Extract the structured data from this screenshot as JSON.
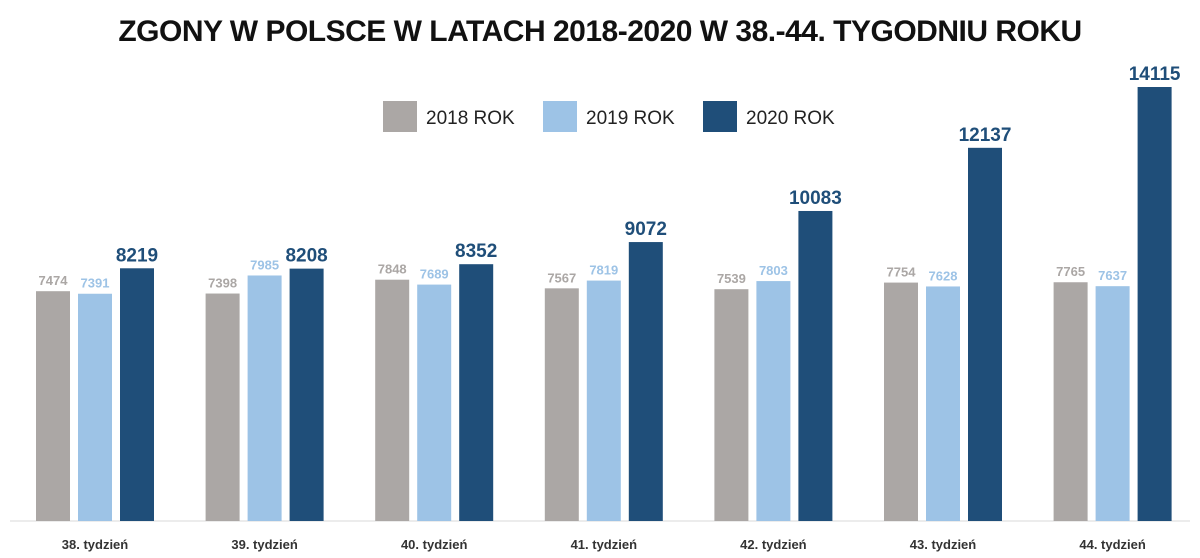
{
  "chart_data": {
    "type": "bar",
    "title": "ZGONY W POLSCE W LATACH 2018-2020 W 38.-44. TYGODNIU ROKU",
    "xlabel": "",
    "ylabel": "",
    "ylim": [
      0,
      14115
    ],
    "grid": false,
    "legend_position": "top-center",
    "categories": [
      "38. tydzień",
      "39. tydzień",
      "40. tydzień",
      "41. tydzień",
      "42. tydzień",
      "43. tydzień",
      "44. tydzień"
    ],
    "series": [
      {
        "name": "2018 ROK",
        "color": "#aba7a5",
        "values": [
          7474,
          7398,
          7848,
          7567,
          7539,
          7754,
          7765
        ]
      },
      {
        "name": "2019 ROK",
        "color": "#9dc3e6",
        "values": [
          7391,
          7985,
          7689,
          7819,
          7803,
          7628,
          7637
        ]
      },
      {
        "name": "2020 ROK",
        "color": "#1f4e79",
        "values": [
          8219,
          8208,
          8352,
          9072,
          10083,
          12137,
          14115
        ]
      }
    ]
  }
}
